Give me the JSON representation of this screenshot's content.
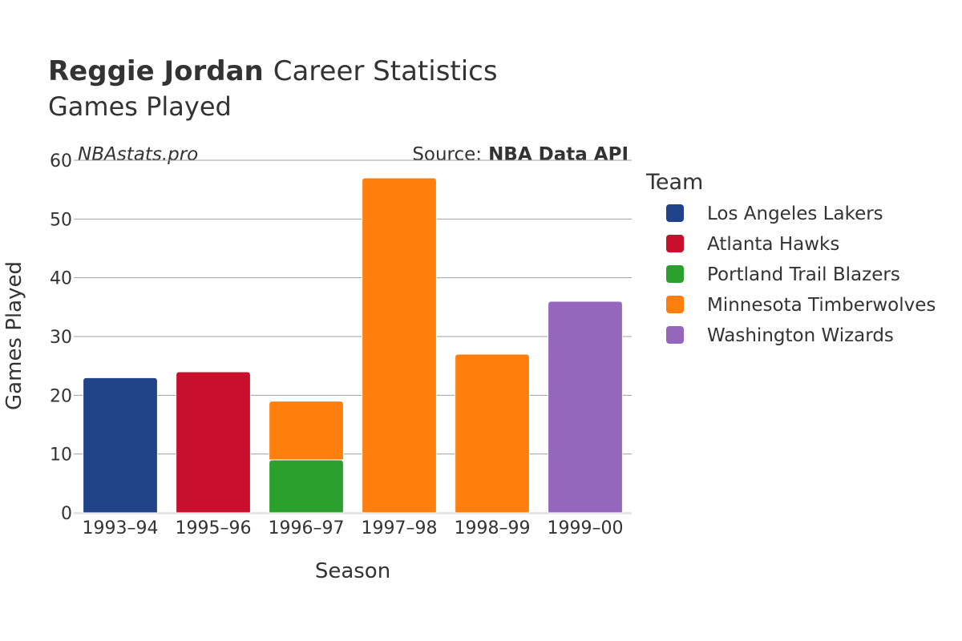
{
  "header": {
    "title_name": "Reggie Jordan",
    "title_rest": "Career Statistics",
    "subtitle": "Games Played",
    "watermark": "NBAstats.pro",
    "source_prefix": "Source:",
    "source_name": "NBA Data API"
  },
  "legend": {
    "title": "Team",
    "items": [
      {
        "label": "Los Angeles Lakers",
        "color": "#1f4289"
      },
      {
        "label": "Atlanta Hawks",
        "color": "#c8102e"
      },
      {
        "label": "Portland Trail Blazers",
        "color": "#2ca02c"
      },
      {
        "label": "Minnesota Timberwolves",
        "color": "#ff7f0e"
      },
      {
        "label": "Washington Wizards",
        "color": "#9467bd"
      }
    ]
  },
  "chart_data": {
    "type": "bar",
    "stacked": true,
    "xlabel": "Season",
    "ylabel": "Games Played",
    "ylim": [
      0,
      60
    ],
    "yticks": [
      0,
      10,
      20,
      30,
      40,
      50,
      60
    ],
    "grid": true,
    "legend_position": "right",
    "categories": [
      "1993–94",
      "1995–96",
      "1996–97",
      "1997–98",
      "1998–99",
      "1999–00"
    ],
    "series": [
      {
        "name": "Los Angeles Lakers",
        "color": "#1f4289",
        "values": [
          23,
          0,
          0,
          0,
          0,
          0
        ]
      },
      {
        "name": "Atlanta Hawks",
        "color": "#c8102e",
        "values": [
          0,
          24,
          0,
          0,
          0,
          0
        ]
      },
      {
        "name": "Portland Trail Blazers",
        "color": "#2ca02c",
        "values": [
          0,
          0,
          9,
          0,
          0,
          0
        ]
      },
      {
        "name": "Minnesota Timberwolves",
        "color": "#ff7f0e",
        "values": [
          0,
          0,
          10,
          57,
          27,
          0
        ]
      },
      {
        "name": "Washington Wizards",
        "color": "#9467bd",
        "values": [
          0,
          0,
          0,
          0,
          0,
          36
        ]
      }
    ]
  }
}
